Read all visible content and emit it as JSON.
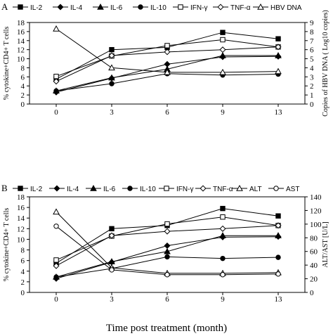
{
  "x_axis_title": "Time post treatment (month)",
  "chart_data": [
    {
      "type": "line",
      "panel_label": "A",
      "categories": [
        "0",
        "3",
        "6",
        "9",
        "13"
      ],
      "ylabel": "% cytokine+CD4+ T cells",
      "ylim": [
        0,
        18
      ],
      "yticks": [
        0,
        2,
        4,
        6,
        8,
        10,
        12,
        14,
        16,
        18
      ],
      "y2label": "Copies of HBV DNA ( Log10 copies)",
      "y2lim": [
        0,
        9
      ],
      "y2ticks": [
        0,
        1,
        2,
        3,
        4,
        5,
        6,
        7,
        8,
        9
      ],
      "legend_position": "top",
      "series": [
        {
          "name": "IL-2",
          "marker": "square-filled",
          "axis": "left",
          "values": [
            5.5,
            12.0,
            12.5,
            15.8,
            14.4
          ]
        },
        {
          "name": "IL-4",
          "marker": "diamond-filled",
          "axis": "left",
          "values": [
            2.6,
            5.7,
            8.8,
            10.4,
            10.5
          ]
        },
        {
          "name": "IL-6",
          "marker": "triangle-filled",
          "axis": "left",
          "values": [
            2.9,
            5.8,
            7.7,
            10.7,
            10.7
          ]
        },
        {
          "name": "IL-10",
          "marker": "circle-filled",
          "axis": "left",
          "values": [
            2.9,
            4.5,
            6.7,
            6.4,
            6.6
          ]
        },
        {
          "name": "IFN-γ",
          "marker": "square-open",
          "axis": "left",
          "values": [
            6.1,
            10.6,
            12.9,
            14.2,
            12.6
          ]
        },
        {
          "name": "TNF-α",
          "marker": "diamond-open",
          "axis": "left",
          "values": [
            5.0,
            10.7,
            11.5,
            12.0,
            12.6
          ]
        },
        {
          "name": "HBV DNA",
          "marker": "triangle-open",
          "axis": "right",
          "values": [
            8.3,
            4.0,
            3.5,
            3.5,
            3.6
          ]
        }
      ]
    },
    {
      "type": "line",
      "panel_label": "B",
      "categories": [
        "0",
        "3",
        "6",
        "9",
        "13"
      ],
      "ylabel": "% cytokine+CD4+ T cells",
      "ylim": [
        0,
        18
      ],
      "yticks": [
        0,
        2,
        4,
        6,
        8,
        10,
        12,
        14,
        16,
        18
      ],
      "y2label": "ALT/AST [U/L]",
      "y2lim": [
        0,
        140
      ],
      "y2ticks": [
        0,
        20,
        40,
        60,
        80,
        100,
        120,
        140
      ],
      "legend_position": "top",
      "series": [
        {
          "name": "IL-2",
          "marker": "square-filled",
          "axis": "left",
          "values": [
            5.5,
            12.0,
            12.6,
            15.8,
            14.4
          ]
        },
        {
          "name": "IL-4",
          "marker": "diamond-filled",
          "axis": "left",
          "values": [
            2.6,
            5.7,
            8.8,
            10.4,
            10.5
          ]
        },
        {
          "name": "IL-6",
          "marker": "triangle-filled",
          "axis": "left",
          "values": [
            2.9,
            5.8,
            7.7,
            10.7,
            10.7
          ]
        },
        {
          "name": "IL-10",
          "marker": "circle-filled",
          "axis": "left",
          "values": [
            2.9,
            4.5,
            6.7,
            6.4,
            6.6
          ]
        },
        {
          "name": "IFN-γ",
          "marker": "square-open",
          "axis": "left",
          "values": [
            6.1,
            10.6,
            12.9,
            14.2,
            12.6
          ]
        },
        {
          "name": "TNF-α",
          "marker": "diamond-open",
          "axis": "left",
          "values": [
            5.0,
            10.7,
            11.5,
            12.0,
            12.6
          ]
        },
        {
          "name": "ALT",
          "marker": "triangle-open",
          "axis": "right",
          "values": [
            118,
            36,
            28,
            28,
            29
          ]
        },
        {
          "name": "AST",
          "marker": "circle-open",
          "axis": "right",
          "values": [
            97,
            33,
            26,
            26,
            27
          ]
        }
      ]
    }
  ]
}
